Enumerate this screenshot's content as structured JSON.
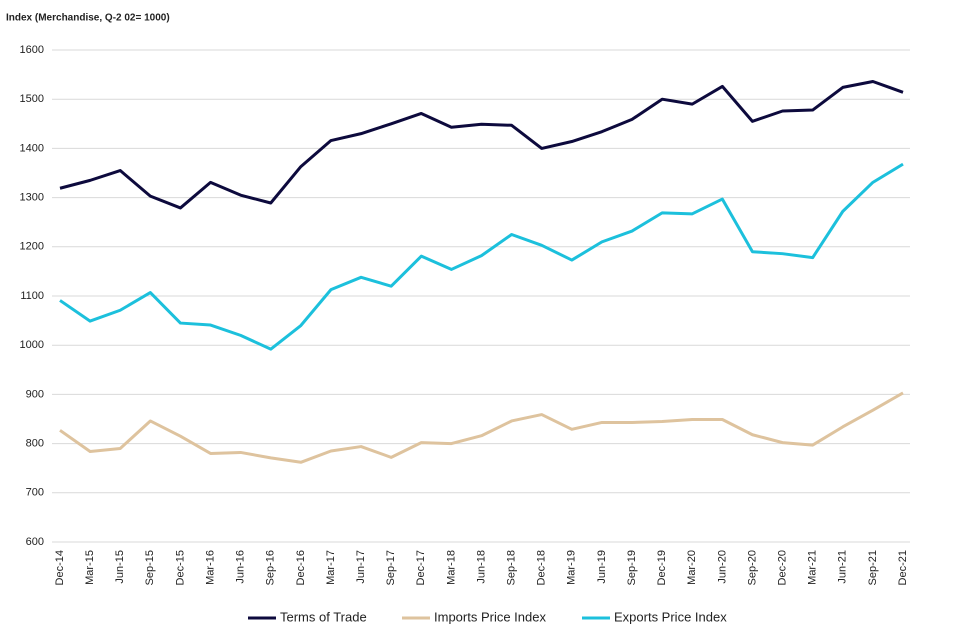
{
  "chart_data": {
    "type": "line",
    "title": "Index (Merchandise, Q-2 02= 1000)",
    "categories": [
      "Dec-14",
      "Mar-15",
      "Jun-15",
      "Sep-15",
      "Dec-15",
      "Mar-16",
      "Jun-16",
      "Sep-16",
      "Dec-16",
      "Mar-17",
      "Jun-17",
      "Sep-17",
      "Dec-17",
      "Mar-18",
      "Jun-18",
      "Sep-18",
      "Dec-18",
      "Mar-19",
      "Jun-19",
      "Sep-19",
      "Dec-19",
      "Mar-20",
      "Jun-20",
      "Sep-20",
      "Dec-20",
      "Mar-21",
      "Jun-21",
      "Sep-21",
      "Dec-21"
    ],
    "series": [
      {
        "name": "Terms of Trade",
        "color": "#0d0a3d",
        "values": [
          1319,
          1335,
          1355,
          1303,
          1279,
          1331,
          1305,
          1289,
          1363,
          1416,
          1430,
          1450,
          1471,
          1443,
          1449,
          1447,
          1400,
          1414,
          1434,
          1459,
          1500,
          1490,
          1526,
          1455,
          1476,
          1478,
          1524,
          1536,
          1514
        ]
      },
      {
        "name": "Imports Price Index",
        "color": "#dec39e",
        "values": [
          827,
          784,
          790,
          846,
          815,
          780,
          782,
          771,
          762,
          785,
          794,
          772,
          802,
          800,
          816,
          846,
          859,
          829,
          843,
          843,
          845,
          849,
          849,
          818,
          802,
          797,
          834,
          868,
          903
        ]
      },
      {
        "name": "Exports Price Index",
        "color": "#1cc0dc",
        "values": [
          1091,
          1049,
          1071,
          1107,
          1045,
          1041,
          1020,
          992,
          1040,
          1113,
          1138,
          1120,
          1181,
          1154,
          1182,
          1225,
          1203,
          1173,
          1210,
          1232,
          1269,
          1267,
          1297,
          1190,
          1186,
          1178,
          1272,
          1331,
          1368
        ]
      }
    ],
    "ylim": [
      600,
      1600
    ],
    "yticks": [
      600,
      700,
      800,
      900,
      1000,
      1100,
      1200,
      1300,
      1400,
      1500,
      1600
    ],
    "grid": true,
    "legend": "bottom"
  }
}
